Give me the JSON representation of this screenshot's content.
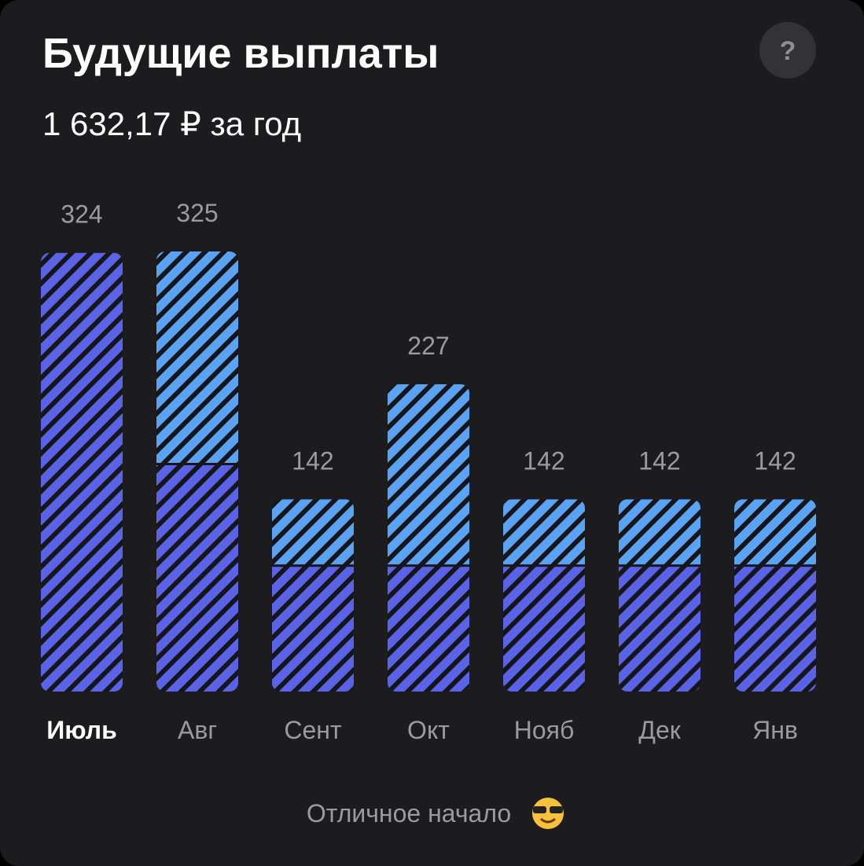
{
  "chart_data": {
    "type": "stacked-bar",
    "title": "Будущие выплаты",
    "subtitle": "1 632,17 ₽ за год",
    "help": "?",
    "footer": "Отличное начало",
    "categories": [
      "Июль",
      "Авг",
      "Сент",
      "Окт",
      "Нояб",
      "Дек",
      "Янв"
    ],
    "selected": 0,
    "series": [
      {
        "color": "#5a63e6",
        "values": [
          324,
          168,
          93,
          93,
          93,
          93,
          93
        ]
      },
      {
        "color": "#5aa2f2",
        "values": [
          0,
          157,
          49,
          134,
          49,
          49,
          49
        ]
      }
    ],
    "totals": [
      324,
      325,
      142,
      227,
      142,
      142,
      142
    ],
    "ylim": [
      0,
      325
    ]
  }
}
